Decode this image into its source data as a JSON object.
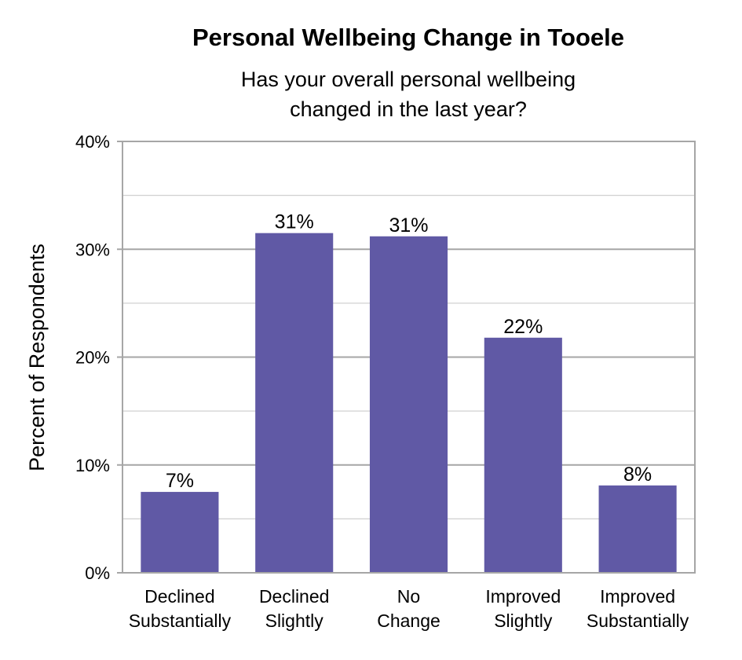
{
  "chart_data": {
    "type": "bar",
    "title": "Personal Wellbeing Change in Tooele",
    "subtitle_lines": [
      "Has your overall personal wellbeing",
      "changed in the last year?"
    ],
    "ylabel": "Percent of Respondents",
    "xlabel": "",
    "categories": [
      [
        "Declined",
        "Substantially"
      ],
      [
        "Declined",
        "Slightly"
      ],
      [
        "No",
        "Change"
      ],
      [
        "Improved",
        "Slightly"
      ],
      [
        "Improved",
        "Substantially"
      ]
    ],
    "values": [
      7.5,
      31.5,
      31.2,
      21.8,
      8.1
    ],
    "data_labels": [
      "7%",
      "31%",
      "31%",
      "22%",
      "8%"
    ],
    "ylim": [
      0,
      40
    ],
    "yticks": [
      0,
      10,
      20,
      30,
      40
    ],
    "ytick_labels": [
      "0%",
      "10%",
      "20%",
      "30%",
      "40%"
    ],
    "minor_gridlines": [
      5,
      15,
      25,
      35
    ],
    "grid": true,
    "bar_color": "#6059a5",
    "plot_border_color": "#a6a6a6",
    "major_grid_color": "#a6a6a6",
    "minor_grid_color": "#d0d0d0"
  }
}
